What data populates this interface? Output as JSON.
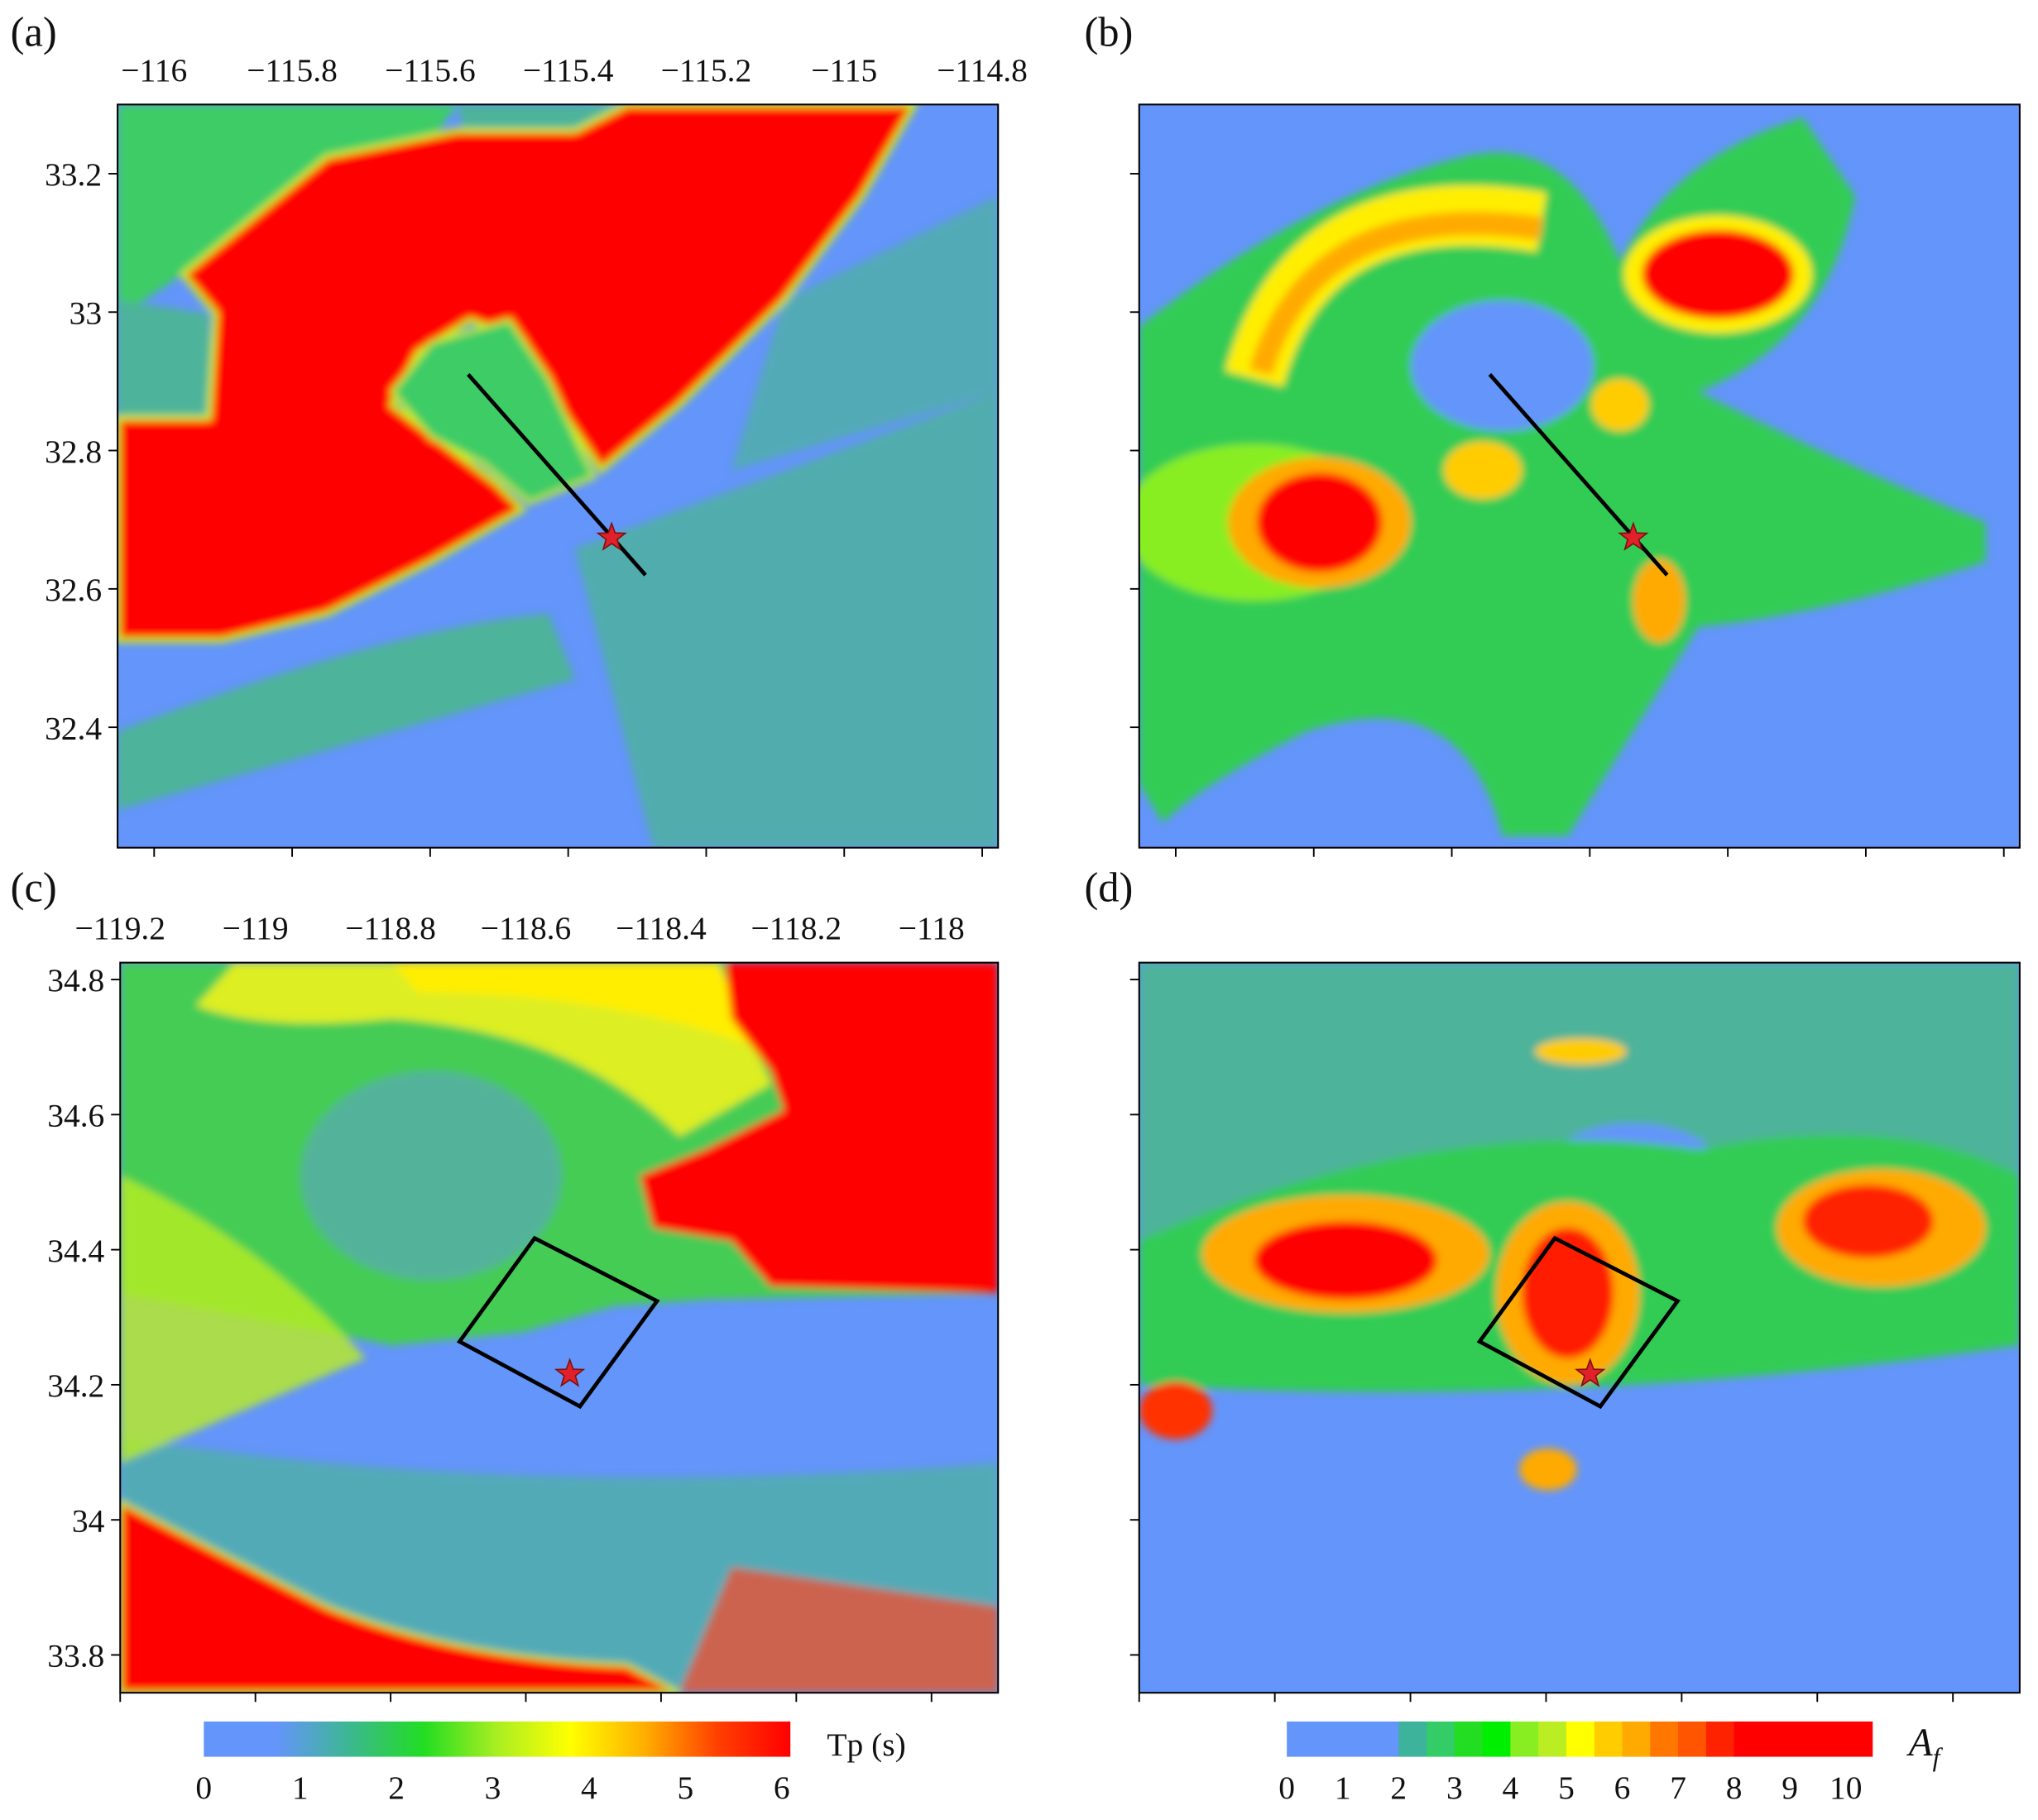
{
  "chart_data": [
    {
      "type": "map",
      "panel": "(a)",
      "xlim": [
        -116.053,
        -114.777
      ],
      "ylim": [
        32.226,
        33.3
      ],
      "show_tick_labels": true,
      "xticks": [
        {
          "value": -116,
          "label": "−116"
        },
        {
          "value": -115.8,
          "label": "−115.8"
        },
        {
          "value": -115.6,
          "label": "−115.6"
        },
        {
          "value": -115.4,
          "label": "−115.4"
        },
        {
          "value": -115.2,
          "label": "−115.2"
        },
        {
          "value": -115,
          "label": "−115"
        },
        {
          "value": -114.8,
          "label": "−114.8"
        }
      ],
      "yticks": [
        32.4,
        32.6,
        32.8,
        33,
        33.2
      ],
      "fault": {
        "lon": [
          -115.545,
          -115.288
        ],
        "lat": [
          32.91,
          32.62
        ]
      },
      "epicenter": {
        "lon": -115.337,
        "lat": 32.674
      }
    },
    {
      "type": "map",
      "panel": "(b)",
      "xlim": [
        -116.053,
        -114.777
      ],
      "ylim": [
        32.226,
        33.3
      ],
      "show_tick_labels": false,
      "xticks": [
        -116,
        -115.8,
        -115.6,
        -115.4,
        -115.2,
        -115,
        -114.8
      ],
      "yticks": [
        32.4,
        32.6,
        32.8,
        33,
        33.2
      ],
      "fault": {
        "lon": [
          -115.545,
          -115.288
        ],
        "lat": [
          32.91,
          32.62
        ]
      },
      "epicenter": {
        "lon": -115.337,
        "lat": 32.674
      }
    },
    {
      "type": "map",
      "panel": "(c)",
      "xlim": [
        -119.2,
        -117.9015
      ],
      "ylim": [
        33.744,
        34.825
      ],
      "show_tick_labels": true,
      "xticks": [
        {
          "value": -119.2,
          "label": "−119.2"
        },
        {
          "value": -119,
          "label": "−119"
        },
        {
          "value": -118.8,
          "label": "−118.8"
        },
        {
          "value": -118.6,
          "label": "−118.6"
        },
        {
          "value": -118.4,
          "label": "−118.4"
        },
        {
          "value": -118.2,
          "label": "−118.2"
        },
        {
          "value": -118,
          "label": "−118"
        }
      ],
      "yticks": [
        33.8,
        34,
        34.2,
        34.4,
        34.6,
        34.8
      ],
      "fault": {
        "lon": [
          -118.698,
          -118.587,
          -118.406,
          -118.52
        ],
        "lat": [
          34.264,
          34.417,
          34.324,
          34.168
        ],
        "closed": true
      },
      "epicenter": {
        "lon": -118.535,
        "lat": 34.216
      },
      "colorbar": {
        "label": "Tp (s)",
        "lim": [
          0,
          6.09
        ],
        "ticks": [
          0,
          1,
          2,
          3,
          4,
          5,
          6
        ],
        "colors": [
          "#6495fa",
          "#6495fa",
          "#3cb88f",
          "#22dd22",
          "#aaee22",
          "#ffff00",
          "#ffb000",
          "#ff4000",
          "#ff0000"
        ]
      }
    },
    {
      "type": "map",
      "panel": "(d)",
      "xlim": [
        -119.2,
        -117.9015
      ],
      "ylim": [
        33.744,
        34.825
      ],
      "show_tick_labels": false,
      "xticks": [
        -119.2,
        -119,
        -118.8,
        -118.6,
        -118.4,
        -118.2,
        -118
      ],
      "yticks": [
        33.8,
        34,
        34.2,
        34.4,
        34.6,
        34.8
      ],
      "fault": {
        "lon": [
          -118.698,
          -118.587,
          -118.406,
          -118.52
        ],
        "lat": [
          34.264,
          34.417,
          34.324,
          34.168
        ],
        "closed": true
      },
      "epicenter": {
        "lon": -118.535,
        "lat": 34.216
      },
      "colorbar": {
        "label": "A",
        "label_subscript": "f",
        "lim": [
          0,
          10.47
        ],
        "ticks": [
          0,
          1,
          2,
          3,
          4,
          5,
          6,
          7,
          8,
          9,
          10
        ],
        "bounds": [
          0,
          2,
          2.5,
          3,
          3.5,
          4,
          4.5,
          5,
          5.5,
          6,
          6.5,
          7,
          7.5,
          8,
          10.47
        ],
        "colors": [
          "#6495fa",
          "#3cb39a",
          "#33cc66",
          "#22dd22",
          "#00ee00",
          "#88ee22",
          "#bbee22",
          "#ffff00",
          "#ffcc00",
          "#ffaa00",
          "#ff7700",
          "#ff5500",
          "#ff2200",
          "#ff0000"
        ]
      }
    }
  ]
}
